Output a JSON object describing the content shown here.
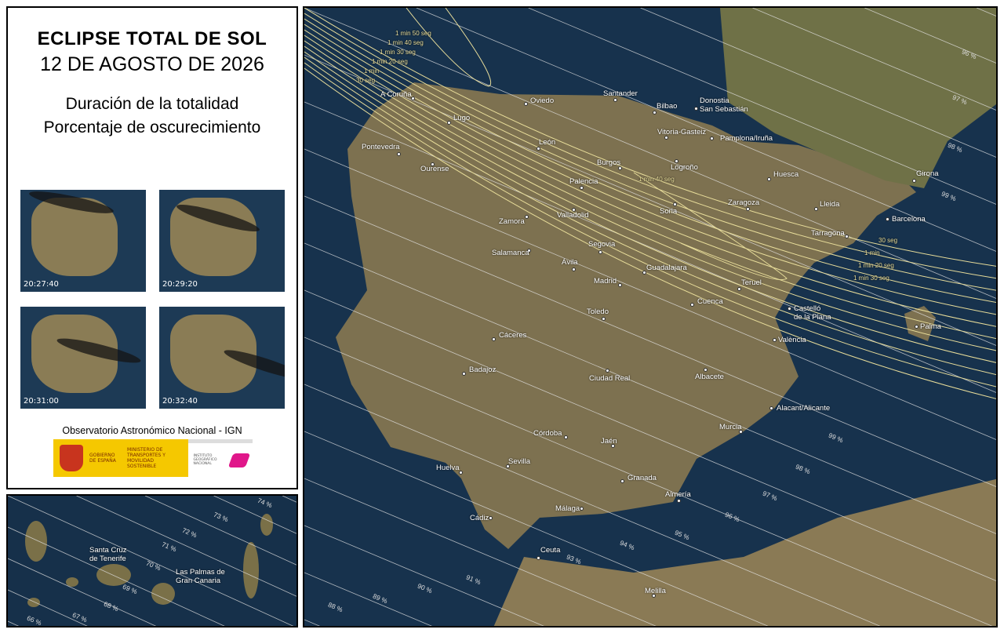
{
  "legend": {
    "title": "ECLIPSE TOTAL DE SOL",
    "date": "12 DE AGOSTO DE 2026",
    "subtitle_1": "Duración de la totalidad",
    "subtitle_2": "Porcentaje de oscurecimiento",
    "thumbnails": [
      {
        "time": "20:27:40"
      },
      {
        "time": "20:29:20"
      },
      {
        "time": "20:31:00"
      },
      {
        "time": "20:32:40"
      }
    ],
    "organization": "Observatorio Astronómico Nacional - IGN",
    "logos": {
      "gobierno": "GOBIERNO DE ESPAÑA",
      "ministerio": "MINISTERIO DE TRANSPORTES Y MOVILIDAD SOSTENIBLE",
      "instituto": "INSTITUTO GEOGRÁFICO NACIONAL"
    }
  },
  "colors": {
    "sea": "#17324d",
    "land": "#7d7150",
    "totality_lines": "#e8dd9a",
    "percent_lines": "#e6e6e6"
  },
  "map": {
    "cities": [
      "A Coruña",
      "Oviedo",
      "Santander",
      "Bilbao",
      "Donostia\nSan Sebastián",
      "Lugo",
      "Pontevedra",
      "Ourense",
      "León",
      "Vitoria-Gasteiz",
      "Pamplona/Iruña",
      "Burgos",
      "Logroño",
      "Palencia",
      "Huesca",
      "Girona",
      "Lleida",
      "Zaragoza",
      "Soria",
      "Valladolid",
      "Zamora",
      "Barcelona",
      "Tarragona",
      "Salamanca",
      "Segovia",
      "Ávila",
      "Guadalajara",
      "Madrid",
      "Teruel",
      "Cuenca",
      "Castelló\nde la Plana",
      "Palma",
      "Toledo",
      "València",
      "Cáceres",
      "Badajoz",
      "Ciudad Real",
      "Albacete",
      "Alacant/Alicante",
      "Murcia",
      "Córdoba",
      "Jaén",
      "Huelva",
      "Sevilla",
      "Granada",
      "Almería",
      "Málaga",
      "Cádiz",
      "Ceuta",
      "Melilla"
    ],
    "percent_labels": [
      "96 %",
      "97 %",
      "98 %",
      "99 %",
      "99 %",
      "98 %",
      "97 %",
      "96 %",
      "95 %",
      "94 %",
      "93 %",
      "91 %",
      "90 %",
      "89 %",
      "88 %"
    ],
    "duration_labels": [
      "1 min 50 seg",
      "1 min 40 seg",
      "1 min 30 seg",
      "1 min 20 seg",
      "1 min",
      "30 seg",
      "1 min 40 seg",
      "30 seg",
      "1 min",
      "1 min 20 seg",
      "1 min 30 seg"
    ]
  },
  "inset": {
    "cities": [
      "Santa Cruz\nde Tenerife",
      "Las Palmas de\nGran Canaria"
    ],
    "percent_labels": [
      "74 %",
      "73 %",
      "72 %",
      "71 %",
      "70 %",
      "69 %",
      "68 %",
      "67 %",
      "66 %"
    ]
  }
}
